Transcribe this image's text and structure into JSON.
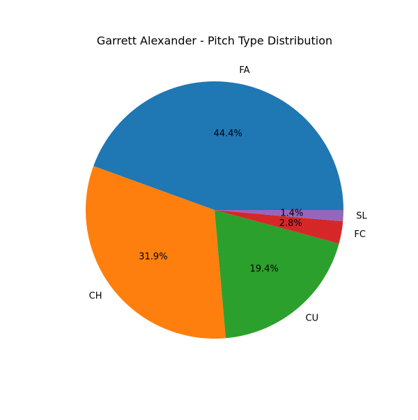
{
  "chart_data": {
    "type": "pie",
    "title": "Garrett Alexander - Pitch Type Distribution",
    "start_angle_deg": 0,
    "direction": "counterclockwise",
    "slices": [
      {
        "label": "FA",
        "value": 44.4,
        "pct_label": "44.4%",
        "color": "#1f77b4"
      },
      {
        "label": "CH",
        "value": 31.9,
        "pct_label": "31.9%",
        "color": "#ff7f0e"
      },
      {
        "label": "CU",
        "value": 19.4,
        "pct_label": "19.4%",
        "color": "#2ca02c"
      },
      {
        "label": "FC",
        "value": 2.8,
        "pct_label": "2.8%",
        "color": "#d62728"
      },
      {
        "label": "SL",
        "value": 1.4,
        "pct_label": "1.4%",
        "color": "#9467bd"
      }
    ]
  }
}
